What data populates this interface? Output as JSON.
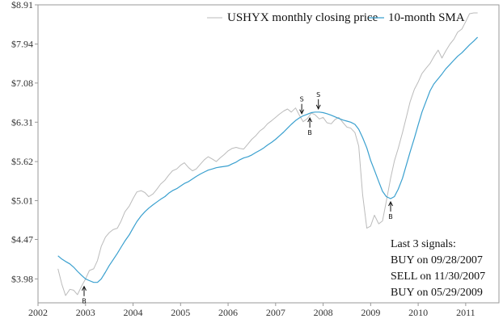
{
  "chart_data": {
    "type": "line",
    "title": "",
    "xlabel": "",
    "ylabel": "",
    "xlim": [
      2002,
      2011.7
    ],
    "ylim": [
      3.71,
      8.91
    ],
    "xticks": [
      2002,
      2003,
      2004,
      2005,
      2006,
      2007,
      2008,
      2009,
      2010,
      2011
    ],
    "xtick_labels": [
      "2002",
      "2003",
      "2004",
      "2005",
      "2006",
      "2007",
      "2008",
      "2009",
      "2010",
      "2011"
    ],
    "yticks": [
      3.98,
      4.47,
      5.01,
      5.62,
      6.31,
      7.08,
      7.94,
      8.91
    ],
    "ytick_labels": [
      "$3.98",
      "$4.47",
      "$5.01",
      "$5.62",
      "$6.31",
      "$7.08",
      "$7.94",
      "$8.91"
    ],
    "y_scale": "log",
    "grid": false,
    "legend_position": "top-left",
    "series": [
      {
        "name": "USHYX monthly closing price",
        "color": "#bbbbbb",
        "x": [
          2002.42,
          2002.5,
          2002.58,
          2002.67,
          2002.75,
          2002.83,
          2002.92,
          2003.0,
          2003.08,
          2003.17,
          2003.25,
          2003.33,
          2003.42,
          2003.5,
          2003.58,
          2003.67,
          2003.75,
          2003.83,
          2003.92,
          2004.0,
          2004.08,
          2004.17,
          2004.25,
          2004.33,
          2004.42,
          2004.5,
          2004.58,
          2004.67,
          2004.75,
          2004.83,
          2004.92,
          2005.0,
          2005.08,
          2005.17,
          2005.25,
          2005.33,
          2005.42,
          2005.5,
          2005.58,
          2005.67,
          2005.75,
          2005.83,
          2005.92,
          2006.0,
          2006.08,
          2006.17,
          2006.25,
          2006.33,
          2006.42,
          2006.5,
          2006.58,
          2006.67,
          2006.75,
          2006.83,
          2006.92,
          2007.0,
          2007.08,
          2007.17,
          2007.25,
          2007.33,
          2007.42,
          2007.5,
          2007.58,
          2007.67,
          2007.75,
          2007.83,
          2007.92,
          2008.0,
          2008.08,
          2008.17,
          2008.25,
          2008.33,
          2008.42,
          2008.5,
          2008.58,
          2008.67,
          2008.75,
          2008.83,
          2008.92,
          2009.0,
          2009.08,
          2009.17,
          2009.25,
          2009.33,
          2009.42,
          2009.5,
          2009.58,
          2009.67,
          2009.75,
          2009.83,
          2009.92,
          2010.0,
          2010.08,
          2010.17,
          2010.25,
          2010.33,
          2010.42,
          2010.5,
          2010.58,
          2010.67,
          2010.75,
          2010.83,
          2010.92,
          2011.0,
          2011.08,
          2011.17,
          2011.25
        ],
        "values": [
          4.1,
          3.92,
          3.79,
          3.86,
          3.85,
          3.8,
          3.9,
          3.98,
          4.08,
          4.1,
          4.2,
          4.38,
          4.5,
          4.56,
          4.6,
          4.62,
          4.72,
          4.85,
          4.93,
          5.04,
          5.14,
          5.16,
          5.13,
          5.07,
          5.11,
          5.18,
          5.26,
          5.32,
          5.4,
          5.47,
          5.5,
          5.56,
          5.6,
          5.52,
          5.47,
          5.5,
          5.58,
          5.65,
          5.7,
          5.66,
          5.62,
          5.68,
          5.74,
          5.8,
          5.84,
          5.86,
          5.84,
          5.83,
          5.92,
          6.0,
          6.06,
          6.15,
          6.2,
          6.28,
          6.34,
          6.4,
          6.46,
          6.52,
          6.56,
          6.5,
          6.58,
          6.44,
          6.32,
          6.38,
          6.48,
          6.45,
          6.37,
          6.4,
          6.3,
          6.28,
          6.36,
          6.4,
          6.3,
          6.22,
          6.2,
          6.12,
          5.88,
          5.1,
          4.62,
          4.65,
          4.8,
          4.68,
          4.72,
          5.0,
          5.35,
          5.63,
          5.84,
          6.12,
          6.4,
          6.7,
          6.95,
          7.1,
          7.28,
          7.4,
          7.5,
          7.65,
          7.8,
          7.62,
          7.78,
          7.94,
          8.05,
          8.22,
          8.3,
          8.48,
          8.68,
          8.7,
          8.7
        ]
      },
      {
        "name": "10-month SMA",
        "color": "#3aa0cf",
        "x": [
          2002.42,
          2002.5,
          2002.58,
          2002.67,
          2002.75,
          2002.83,
          2002.92,
          2003.0,
          2003.08,
          2003.17,
          2003.25,
          2003.33,
          2003.42,
          2003.5,
          2003.58,
          2003.67,
          2003.75,
          2003.83,
          2003.92,
          2004.0,
          2004.08,
          2004.17,
          2004.25,
          2004.33,
          2004.42,
          2004.5,
          2004.58,
          2004.67,
          2004.75,
          2004.83,
          2004.92,
          2005.0,
          2005.08,
          2005.17,
          2005.25,
          2005.33,
          2005.42,
          2005.5,
          2005.58,
          2005.67,
          2005.75,
          2005.83,
          2005.92,
          2006.0,
          2006.08,
          2006.17,
          2006.25,
          2006.33,
          2006.42,
          2006.5,
          2006.58,
          2006.67,
          2006.75,
          2006.83,
          2006.92,
          2007.0,
          2007.08,
          2007.17,
          2007.25,
          2007.33,
          2007.42,
          2007.5,
          2007.58,
          2007.67,
          2007.75,
          2007.83,
          2007.92,
          2008.0,
          2008.08,
          2008.17,
          2008.25,
          2008.33,
          2008.42,
          2008.5,
          2008.58,
          2008.67,
          2008.75,
          2008.83,
          2008.92,
          2009.0,
          2009.08,
          2009.17,
          2009.25,
          2009.33,
          2009.42,
          2009.5,
          2009.58,
          2009.67,
          2009.75,
          2009.83,
          2009.92,
          2010.0,
          2010.08,
          2010.17,
          2010.25,
          2010.33,
          2010.42,
          2010.5,
          2010.58,
          2010.67,
          2010.75,
          2010.83,
          2010.92,
          2011.0,
          2011.08,
          2011.17,
          2011.25
        ],
        "values": [
          4.26,
          4.22,
          4.19,
          4.16,
          4.12,
          4.07,
          4.02,
          3.98,
          3.96,
          3.94,
          3.94,
          3.98,
          4.06,
          4.14,
          4.21,
          4.29,
          4.37,
          4.45,
          4.53,
          4.62,
          4.71,
          4.79,
          4.85,
          4.9,
          4.95,
          4.99,
          5.03,
          5.07,
          5.12,
          5.16,
          5.19,
          5.23,
          5.27,
          5.3,
          5.34,
          5.38,
          5.42,
          5.45,
          5.48,
          5.5,
          5.52,
          5.53,
          5.54,
          5.55,
          5.58,
          5.61,
          5.65,
          5.68,
          5.7,
          5.73,
          5.77,
          5.81,
          5.85,
          5.9,
          5.95,
          6.0,
          6.06,
          6.13,
          6.2,
          6.27,
          6.34,
          6.39,
          6.43,
          6.46,
          6.49,
          6.5,
          6.5,
          6.49,
          6.47,
          6.44,
          6.41,
          6.38,
          6.35,
          6.33,
          6.31,
          6.27,
          6.18,
          6.03,
          5.85,
          5.64,
          5.48,
          5.3,
          5.15,
          5.07,
          5.04,
          5.07,
          5.18,
          5.35,
          5.56,
          5.78,
          6.02,
          6.26,
          6.5,
          6.72,
          6.92,
          7.06,
          7.17,
          7.27,
          7.38,
          7.48,
          7.57,
          7.66,
          7.74,
          7.83,
          7.92,
          8.01,
          8.1
        ]
      }
    ],
    "signal_markers": [
      {
        "letter": "B",
        "x": 2002.97,
        "y": 3.93,
        "direction": "up"
      },
      {
        "letter": "S",
        "x": 2007.55,
        "y": 6.41,
        "direction": "down"
      },
      {
        "letter": "B",
        "x": 2007.72,
        "y": 6.45,
        "direction": "up"
      },
      {
        "letter": "S",
        "x": 2007.9,
        "y": 6.5,
        "direction": "down"
      },
      {
        "letter": "B",
        "x": 2009.42,
        "y": 5.04,
        "direction": "up"
      }
    ],
    "signals_box": {
      "title": "Last 3 signals:",
      "lines": [
        "BUY on 09/28/2007",
        "SELL on 11/30/2007",
        "BUY on 05/29/2009"
      ]
    },
    "colors": {
      "axis": "#999999",
      "text": "#333333"
    }
  }
}
